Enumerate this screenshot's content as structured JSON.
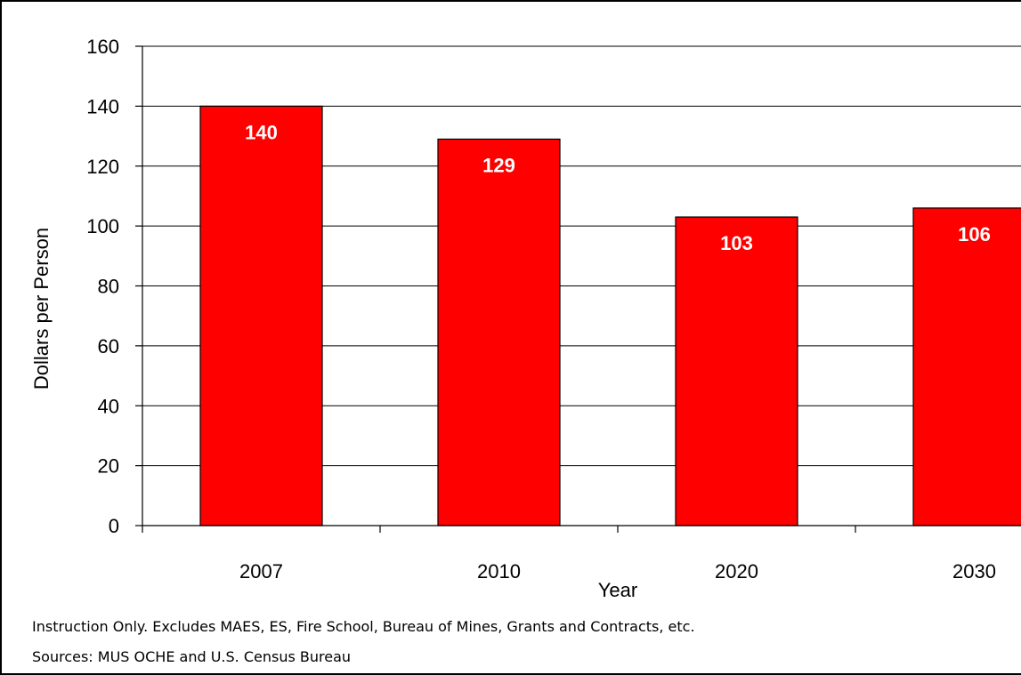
{
  "chart_data": {
    "type": "bar",
    "categories": [
      "2007",
      "2010",
      "2020",
      "2030"
    ],
    "values": [
      140,
      129,
      103,
      106
    ],
    "value_labels": [
      "140",
      "129",
      "103",
      "106"
    ],
    "title": "",
    "xlabel": "Year",
    "ylabel": "Dollars per Person",
    "ylim": [
      0,
      160
    ],
    "yticks": [
      0,
      20,
      40,
      60,
      80,
      100,
      120,
      140,
      160
    ],
    "grid": true,
    "bar_color": "#FF0000",
    "label_color": "#FFFFFF"
  },
  "notes": {
    "line1": "Instruction Only. Excludes MAES, ES, Fire School, Bureau of Mines, Grants and Contracts, etc.",
    "line2": "Sources: MUS OCHE and U.S. Census Bureau"
  }
}
